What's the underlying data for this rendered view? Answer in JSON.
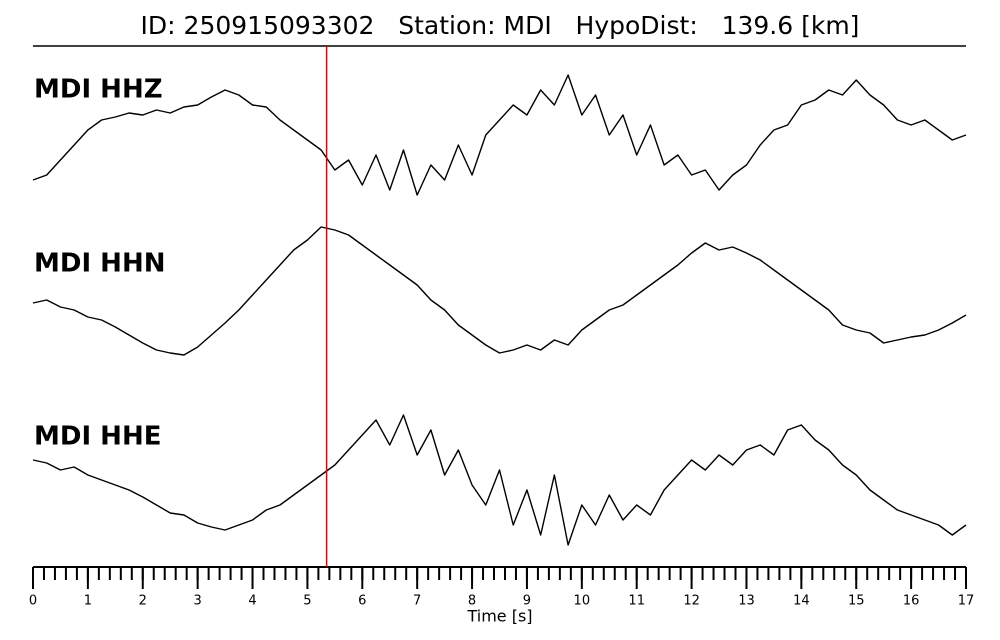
{
  "chart_data": {
    "type": "line",
    "title": "ID: 250915093302   Station: MDI   HypoDist:   139.6 [km]",
    "xlabel": "Time [s]",
    "xlim": [
      0,
      17
    ],
    "xticks": [
      0,
      1,
      2,
      3,
      4,
      5,
      6,
      7,
      8,
      9,
      10,
      11,
      12,
      13,
      14,
      15,
      16,
      17
    ],
    "xminor_step": 0.2,
    "ylim": [
      -80,
      80
    ],
    "label_color": "#4c9a00",
    "marker": {
      "x": 5.35,
      "color": "#e00000"
    },
    "x": [
      0,
      0.25,
      0.5,
      0.75,
      1,
      1.25,
      1.5,
      1.75,
      2,
      2.25,
      2.5,
      2.75,
      3,
      3.25,
      3.5,
      3.75,
      4,
      4.25,
      4.5,
      4.75,
      5,
      5.25,
      5.5,
      5.75,
      6,
      6.25,
      6.5,
      6.75,
      7,
      7.25,
      7.5,
      7.75,
      8,
      8.25,
      8.5,
      8.75,
      9,
      9.25,
      9.5,
      9.75,
      10,
      10.25,
      10.5,
      10.75,
      11,
      11.25,
      11.5,
      11.75,
      12,
      12.25,
      12.5,
      12.75,
      13,
      13.25,
      13.5,
      13.75,
      14,
      14.25,
      14.5,
      14.75,
      15,
      15.25,
      15.5,
      15.75,
      16,
      16.25,
      16.5,
      16.75,
      17
    ],
    "series": [
      {
        "name": "MDI HHZ",
        "color": "#000000",
        "values": [
          -45,
          -40,
          -25,
          -10,
          5,
          15,
          18,
          22,
          20,
          25,
          22,
          28,
          30,
          38,
          45,
          40,
          30,
          28,
          15,
          5,
          -5,
          -15,
          -35,
          -25,
          -50,
          -20,
          -55,
          -15,
          -60,
          -30,
          -45,
          -10,
          -40,
          0,
          15,
          30,
          20,
          45,
          30,
          60,
          20,
          40,
          0,
          20,
          -20,
          10,
          -30,
          -20,
          -40,
          -35,
          -55,
          -40,
          -30,
          -10,
          5,
          10,
          30,
          35,
          45,
          40,
          55,
          40,
          30,
          15,
          10,
          15,
          5,
          -5,
          0
        ]
      },
      {
        "name": "MDI HHN",
        "color": "#000000",
        "values": [
          -8,
          -5,
          -12,
          -15,
          -22,
          -25,
          -32,
          -40,
          -48,
          -55,
          -58,
          -60,
          -52,
          -40,
          -28,
          -15,
          0,
          15,
          30,
          45,
          55,
          68,
          65,
          60,
          50,
          40,
          30,
          20,
          10,
          -5,
          -15,
          -30,
          -40,
          -50,
          -58,
          -55,
          -50,
          -55,
          -45,
          -50,
          -35,
          -25,
          -15,
          -10,
          0,
          10,
          20,
          30,
          42,
          52,
          45,
          48,
          42,
          35,
          25,
          15,
          5,
          -5,
          -15,
          -30,
          -35,
          -38,
          -48,
          -45,
          -42,
          -40,
          -35,
          -28,
          -20
        ]
      },
      {
        "name": "MDI HHE",
        "color": "#000000",
        "values": [
          25,
          22,
          15,
          18,
          10,
          5,
          0,
          -5,
          -12,
          -20,
          -28,
          -30,
          -38,
          -42,
          -45,
          -40,
          -35,
          -25,
          -20,
          -10,
          0,
          10,
          20,
          35,
          50,
          65,
          40,
          70,
          30,
          55,
          10,
          35,
          0,
          -20,
          15,
          -40,
          -5,
          -50,
          10,
          -60,
          -20,
          -40,
          -10,
          -35,
          -20,
          -30,
          -5,
          10,
          25,
          15,
          30,
          20,
          35,
          40,
          30,
          55,
          60,
          45,
          35,
          20,
          10,
          -5,
          -15,
          -25,
          -30,
          -35,
          -40,
          -50,
          -40
        ]
      }
    ]
  }
}
